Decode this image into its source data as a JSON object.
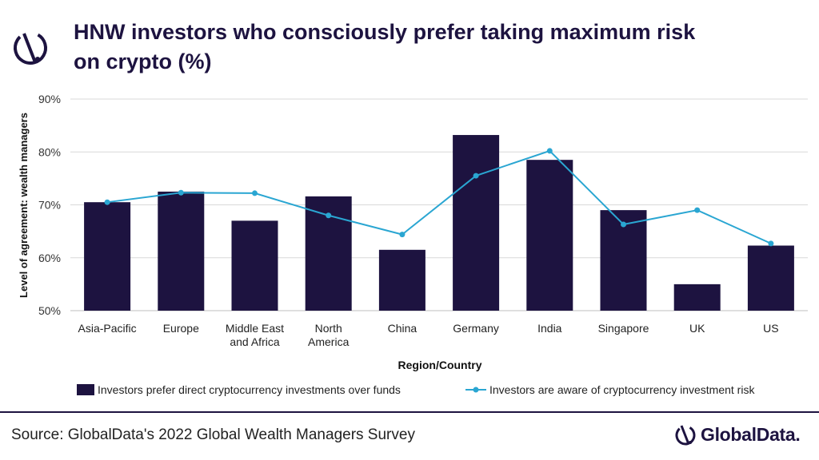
{
  "header": {
    "title_line1": "HNW investors who consciously prefer taking maximum risk",
    "title_line2": "on crypto (%)",
    "icon": "globaldata-brand-icon"
  },
  "chart_data": {
    "type": "bar",
    "categories": [
      [
        "Asia-Pacific"
      ],
      [
        "Europe"
      ],
      [
        "Middle East",
        "and Africa"
      ],
      [
        "North",
        "America"
      ],
      [
        "China"
      ],
      [
        "Germany"
      ],
      [
        "India"
      ],
      [
        "Singapore"
      ],
      [
        "UK"
      ],
      [
        "US"
      ]
    ],
    "series": [
      {
        "name": "Investors prefer direct cryptocurrency investments over funds",
        "type": "bar",
        "color": "#1d1340",
        "values": [
          70.5,
          72.5,
          67.0,
          71.6,
          61.5,
          83.2,
          78.5,
          69.0,
          55.0,
          62.3
        ]
      },
      {
        "name": "Investors are aware of cryptocurrency investment risk",
        "type": "line",
        "color": "#2aa6d2",
        "values": [
          70.5,
          72.3,
          72.2,
          68.0,
          64.4,
          75.5,
          80.2,
          66.3,
          69.0,
          62.7
        ]
      }
    ],
    "xlabel": "Region/Country",
    "ylabel": "Level of agreement: wealth managers",
    "ylim": [
      50,
      90
    ],
    "yticks": [
      "50%",
      "60%",
      "70%",
      "80%",
      "90%"
    ],
    "grid": true,
    "legend_position": "bottom"
  },
  "footer": {
    "source": "Source: GlobalData's 2022 Global Wealth Managers Survey",
    "logo_text": "GlobalData.",
    "logo_icon": "globaldata-logo-icon"
  }
}
